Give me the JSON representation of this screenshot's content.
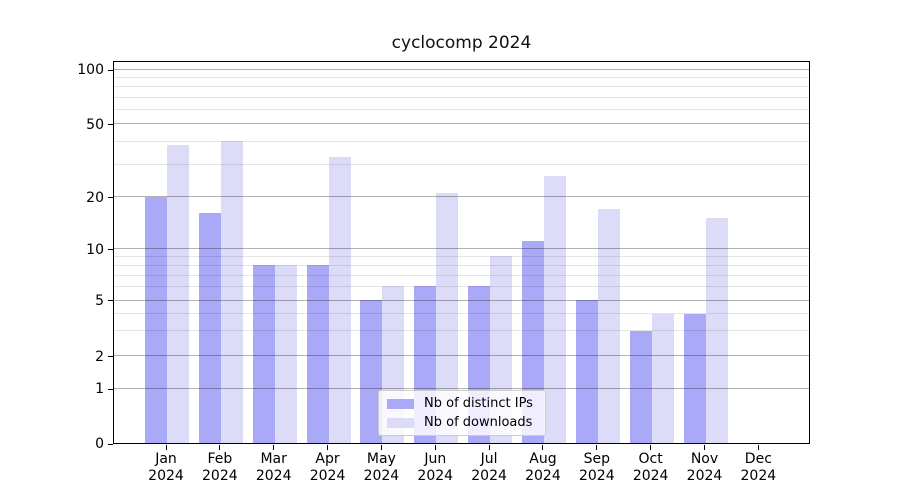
{
  "chart_data": {
    "type": "bar",
    "title": "cyclocomp 2024",
    "categories": [
      "Jan",
      "Feb",
      "Mar",
      "Apr",
      "May",
      "Jun",
      "Jul",
      "Aug",
      "Sep",
      "Oct",
      "Nov",
      "Dec"
    ],
    "x_tick_year": "2024",
    "series": [
      {
        "name": "Nb of distinct IPs",
        "color": "#a9a9f7",
        "values": [
          20,
          16,
          8,
          8,
          5,
          6,
          6,
          11,
          5,
          3,
          4,
          0
        ]
      },
      {
        "name": "Nb of downloads",
        "color": "#dcdcf9",
        "values": [
          38,
          40,
          8,
          33,
          6,
          21,
          9,
          26,
          17,
          4,
          15,
          0
        ]
      }
    ],
    "y_axis": {
      "ticks": [
        0,
        1,
        2,
        5,
        10,
        20,
        50,
        100
      ],
      "minor_gridlines": [
        3,
        4,
        6,
        7,
        8,
        9,
        30,
        40,
        60,
        70,
        80,
        90
      ],
      "scale": "log-like with linear segment below 1",
      "range": [
        0,
        110
      ]
    },
    "legend": {
      "position": "lower center"
    },
    "grid": "on"
  }
}
